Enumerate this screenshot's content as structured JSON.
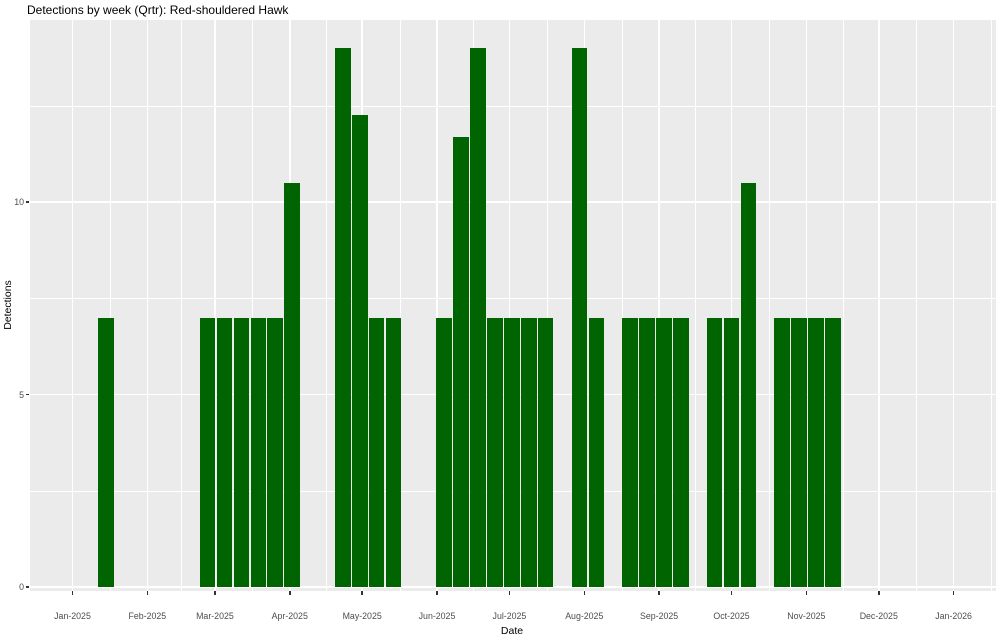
{
  "title": "Detections by week (Qrtr): Red-shouldered Hawk",
  "chart_data": {
    "type": "bar",
    "title": "Detections by week (Qrtr): Red-shouldered Hawk",
    "xlabel": "Date",
    "ylabel": "Detections",
    "bar_color": "#006400",
    "panel_bg": "#EBEBEB",
    "grid_color": "#FFFFFF",
    "axis_text_color": "#4D4D4D",
    "ylim": [
      0,
      14.7
    ],
    "y_major_ticks": [
      0,
      5,
      10
    ],
    "y_minor_ticks": [
      2.5,
      7.5,
      12.5
    ],
    "x_axis_start": "2025-01-01",
    "x_ticks": [
      {
        "label": "Jan-2025",
        "date": "2025-01-01"
      },
      {
        "label": "Feb-2025",
        "date": "2025-02-01"
      },
      {
        "label": "Mar-2025",
        "date": "2025-03-01"
      },
      {
        "label": "Apr-2025",
        "date": "2025-04-01"
      },
      {
        "label": "May-2025",
        "date": "2025-05-01"
      },
      {
        "label": "Jun-2025",
        "date": "2025-06-01"
      },
      {
        "label": "Jul-2025",
        "date": "2025-07-01"
      },
      {
        "label": "Aug-2025",
        "date": "2025-08-01"
      },
      {
        "label": "Sep-2025",
        "date": "2025-09-01"
      },
      {
        "label": "Oct-2025",
        "date": "2025-10-01"
      },
      {
        "label": "Nov-2025",
        "date": "2025-11-01"
      },
      {
        "label": "Dec-2025",
        "date": "2025-12-01"
      },
      {
        "label": "Jan-2026",
        "date": "2026-01-01"
      }
    ],
    "weeks": [
      {
        "week": "2025-01-01",
        "detections": 0
      },
      {
        "week": "2025-01-08",
        "detections": 0
      },
      {
        "week": "2025-01-15",
        "detections": 7
      },
      {
        "week": "2025-01-22",
        "detections": 0
      },
      {
        "week": "2025-01-29",
        "detections": 0
      },
      {
        "week": "2025-02-05",
        "detections": 0
      },
      {
        "week": "2025-02-12",
        "detections": 0
      },
      {
        "week": "2025-02-19",
        "detections": 0
      },
      {
        "week": "2025-02-26",
        "detections": 7
      },
      {
        "week": "2025-03-05",
        "detections": 7
      },
      {
        "week": "2025-03-12",
        "detections": 7
      },
      {
        "week": "2025-03-19",
        "detections": 7
      },
      {
        "week": "2025-03-26",
        "detections": 7
      },
      {
        "week": "2025-04-02",
        "detections": 10.5
      },
      {
        "week": "2025-04-09",
        "detections": 0
      },
      {
        "week": "2025-04-16",
        "detections": 0
      },
      {
        "week": "2025-04-23",
        "detections": 14
      },
      {
        "week": "2025-04-30",
        "detections": 12.25
      },
      {
        "week": "2025-05-07",
        "detections": 7
      },
      {
        "week": "2025-05-14",
        "detections": 7
      },
      {
        "week": "2025-05-21",
        "detections": 0
      },
      {
        "week": "2025-05-28",
        "detections": 0
      },
      {
        "week": "2025-06-04",
        "detections": 7
      },
      {
        "week": "2025-06-11",
        "detections": 11.7
      },
      {
        "week": "2025-06-18",
        "detections": 14
      },
      {
        "week": "2025-06-25",
        "detections": 7
      },
      {
        "week": "2025-07-02",
        "detections": 7
      },
      {
        "week": "2025-07-09",
        "detections": 7
      },
      {
        "week": "2025-07-16",
        "detections": 7
      },
      {
        "week": "2025-07-23",
        "detections": 0
      },
      {
        "week": "2025-07-30",
        "detections": 14
      },
      {
        "week": "2025-08-06",
        "detections": 7
      },
      {
        "week": "2025-08-13",
        "detections": 0
      },
      {
        "week": "2025-08-20",
        "detections": 7
      },
      {
        "week": "2025-08-27",
        "detections": 7
      },
      {
        "week": "2025-09-03",
        "detections": 7
      },
      {
        "week": "2025-09-10",
        "detections": 7
      },
      {
        "week": "2025-09-17",
        "detections": 0
      },
      {
        "week": "2025-09-24",
        "detections": 7
      },
      {
        "week": "2025-10-01",
        "detections": 7
      },
      {
        "week": "2025-10-08",
        "detections": 10.5
      },
      {
        "week": "2025-10-15",
        "detections": 0
      },
      {
        "week": "2025-10-22",
        "detections": 7
      },
      {
        "week": "2025-10-29",
        "detections": 7
      },
      {
        "week": "2025-11-05",
        "detections": 7
      },
      {
        "week": "2025-11-12",
        "detections": 7
      },
      {
        "week": "2025-11-19",
        "detections": 0
      },
      {
        "week": "2025-11-26",
        "detections": 0
      },
      {
        "week": "2025-12-03",
        "detections": 0
      },
      {
        "week": "2025-12-10",
        "detections": 0
      },
      {
        "week": "2025-12-17",
        "detections": 0
      },
      {
        "week": "2025-12-24",
        "detections": 0
      },
      {
        "week": "2025-12-31",
        "detections": 0
      }
    ]
  }
}
